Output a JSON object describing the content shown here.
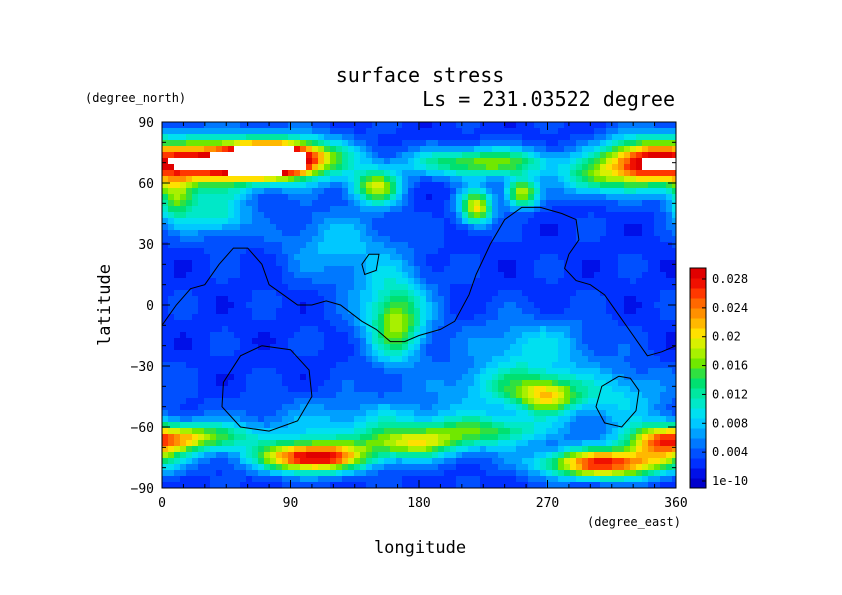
{
  "chart_data": {
    "type": "heatmap",
    "title": "surface stress",
    "subtitle": "Ls = 231.03522 degree",
    "xlabel": "longitude",
    "ylabel": "latitude",
    "xunits": "(degree_east)",
    "yunits": "(degree_north)",
    "xlim": [
      0,
      360
    ],
    "ylim": [
      -90,
      90
    ],
    "xticks": [
      "0",
      "90",
      "180",
      "270",
      "360"
    ],
    "yticks": [
      "90",
      "60",
      "30",
      "0",
      "−30",
      "−60",
      "−90"
    ],
    "colorbar": {
      "labels": [
        "0.028",
        "0.024",
        "0.02",
        "0.016",
        "0.012",
        "0.008",
        "0.004",
        "1e-10"
      ],
      "min": 0,
      "max": 0.03,
      "colors": [
        "#0000cc",
        "#0010e8",
        "#0030ff",
        "#0050ff",
        "#0078ff",
        "#00a0ff",
        "#00c8ff",
        "#00e0f0",
        "#00e8c8",
        "#00e8a0",
        "#00e070",
        "#30e040",
        "#70e800",
        "#a8f000",
        "#d8f000",
        "#ffe000",
        "#ffb800",
        "#ff9000",
        "#ff6800",
        "#ff3800",
        "#f01000",
        "#e00000"
      ]
    },
    "background_level": 0.0036,
    "blobs": [
      {
        "lon": 30,
        "lat": 70,
        "sx": 35,
        "sy": 8,
        "v": 0.024
      },
      {
        "lon": 70,
        "lat": 71,
        "sx": 20,
        "sy": 5,
        "v": 0.03
      },
      {
        "lon": 95,
        "lat": 72,
        "sx": 25,
        "sy": 7,
        "v": 0.018
      },
      {
        "lon": 10,
        "lat": 52,
        "sx": 10,
        "sy": 8,
        "v": 0.012
      },
      {
        "lon": 40,
        "lat": 45,
        "sx": 15,
        "sy": 8,
        "v": 0.008
      },
      {
        "lon": 150,
        "lat": 58,
        "sx": 12,
        "sy": 6,
        "v": 0.015
      },
      {
        "lon": 225,
        "lat": 70,
        "sx": 35,
        "sy": 5,
        "v": 0.014
      },
      {
        "lon": 220,
        "lat": 48,
        "sx": 8,
        "sy": 6,
        "v": 0.017
      },
      {
        "lon": 252,
        "lat": 55,
        "sx": 8,
        "sy": 5,
        "v": 0.016
      },
      {
        "lon": 335,
        "lat": 70,
        "sx": 20,
        "sy": 8,
        "v": 0.02
      },
      {
        "lon": 300,
        "lat": 62,
        "sx": 15,
        "sy": 6,
        "v": 0.009
      },
      {
        "lon": 165,
        "lat": -10,
        "sx": 12,
        "sy": 12,
        "v": 0.01
      },
      {
        "lon": 160,
        "lat": 0,
        "sx": 20,
        "sy": 18,
        "v": 0.006
      },
      {
        "lon": 120,
        "lat": 30,
        "sx": 25,
        "sy": 12,
        "v": 0.005
      },
      {
        "lon": 260,
        "lat": -20,
        "sx": 30,
        "sy": 10,
        "v": 0.006
      },
      {
        "lon": 270,
        "lat": -45,
        "sx": 15,
        "sy": 6,
        "v": 0.013
      },
      {
        "lon": 245,
        "lat": -40,
        "sx": 30,
        "sy": 8,
        "v": 0.008
      },
      {
        "lon": 320,
        "lat": -45,
        "sx": 25,
        "sy": 10,
        "v": 0.006
      },
      {
        "lon": 20,
        "lat": -65,
        "sx": 30,
        "sy": 5,
        "v": 0.014
      },
      {
        "lon": 105,
        "lat": -75,
        "sx": 25,
        "sy": 5,
        "v": 0.026
      },
      {
        "lon": 175,
        "lat": -68,
        "sx": 25,
        "sy": 5,
        "v": 0.012
      },
      {
        "lon": 230,
        "lat": -62,
        "sx": 30,
        "sy": 5,
        "v": 0.009
      },
      {
        "lon": 310,
        "lat": -78,
        "sx": 30,
        "sy": 5,
        "v": 0.024
      },
      {
        "lon": 350,
        "lat": -68,
        "sx": 18,
        "sy": 6,
        "v": 0.015
      },
      {
        "lon": 150,
        "lat": -60,
        "sx": 60,
        "sy": 10,
        "v": 0.006
      }
    ],
    "contours": [
      [
        [
          0,
          -10
        ],
        [
          10,
          0
        ],
        [
          20,
          8
        ],
        [
          30,
          10
        ],
        [
          40,
          20
        ],
        [
          50,
          28
        ],
        [
          60,
          28
        ],
        [
          70,
          20
        ],
        [
          75,
          10
        ],
        [
          85,
          5
        ],
        [
          95,
          0
        ],
        [
          105,
          0
        ],
        [
          115,
          2
        ],
        [
          125,
          0
        ],
        [
          140,
          -8
        ],
        [
          150,
          -12
        ],
        [
          160,
          -18
        ],
        [
          170,
          -18
        ],
        [
          180,
          -15
        ],
        [
          195,
          -12
        ],
        [
          205,
          -8
        ],
        [
          215,
          5
        ],
        [
          220,
          15
        ],
        [
          230,
          30
        ],
        [
          240,
          42
        ],
        [
          252,
          48
        ],
        [
          265,
          48
        ],
        [
          280,
          45
        ],
        [
          290,
          42
        ],
        [
          292,
          32
        ],
        [
          285,
          25
        ],
        [
          282,
          18
        ],
        [
          290,
          12
        ],
        [
          300,
          10
        ],
        [
          310,
          5
        ],
        [
          320,
          -5
        ],
        [
          330,
          -15
        ],
        [
          340,
          -25
        ],
        [
          350,
          -23
        ],
        [
          360,
          -20
        ]
      ],
      [
        [
          70,
          -20
        ],
        [
          55,
          -25
        ],
        [
          43,
          -38
        ],
        [
          42,
          -50
        ],
        [
          55,
          -60
        ],
        [
          75,
          -62
        ],
        [
          95,
          -57
        ],
        [
          105,
          -45
        ],
        [
          103,
          -32
        ],
        [
          90,
          -22
        ],
        [
          70,
          -20
        ]
      ],
      [
        [
          320,
          -35
        ],
        [
          308,
          -40
        ],
        [
          304,
          -50
        ],
        [
          310,
          -58
        ],
        [
          322,
          -60
        ],
        [
          332,
          -52
        ],
        [
          334,
          -42
        ],
        [
          328,
          -36
        ],
        [
          320,
          -35
        ]
      ],
      [
        [
          145,
          25
        ],
        [
          140,
          20
        ],
        [
          142,
          15
        ],
        [
          150,
          17
        ],
        [
          152,
          25
        ],
        [
          145,
          25
        ]
      ]
    ]
  }
}
